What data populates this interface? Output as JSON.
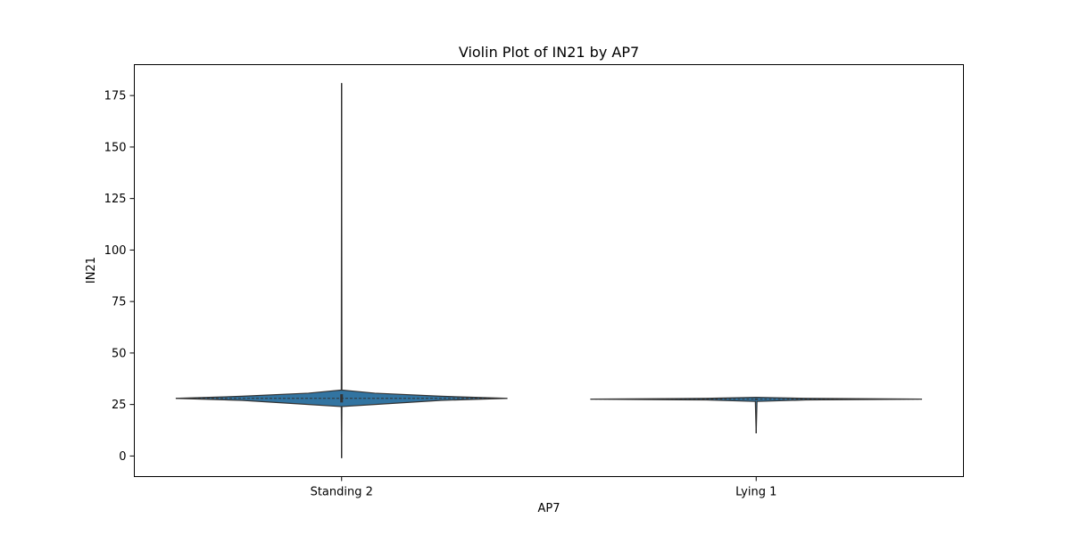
{
  "chart_data": {
    "type": "violin",
    "title": "Violin Plot of IN21 by AP7",
    "xlabel": "AP7",
    "ylabel": "IN21",
    "categories": [
      "Standing 2",
      "Lying 1"
    ],
    "ylim": [
      -10,
      190
    ],
    "yticks": [
      0,
      25,
      50,
      75,
      100,
      125,
      150,
      175
    ],
    "grid": false,
    "legend": "none",
    "fill_color": "#3274a1",
    "line_color": "#333333",
    "series": [
      {
        "category": "Standing 2",
        "min": -1,
        "max": 181,
        "q1": 26,
        "median": 28,
        "q3": 30,
        "density": [
          {
            "y": -1,
            "w": 0.0
          },
          {
            "y": 24,
            "w": 0.002
          },
          {
            "y": 25,
            "w": 0.2
          },
          {
            "y": 27,
            "w": 0.6
          },
          {
            "y": 28,
            "w": 1.0
          },
          {
            "y": 29,
            "w": 0.6
          },
          {
            "y": 30.5,
            "w": 0.2
          },
          {
            "y": 32,
            "w": 0.002
          },
          {
            "y": 181,
            "w": 0.0
          }
        ]
      },
      {
        "category": "Lying 1",
        "min": 11,
        "max": 28.5,
        "q1": 27.2,
        "median": 27.6,
        "q3": 27.9,
        "density": [
          {
            "y": 11,
            "w": 0.0
          },
          {
            "y": 26.5,
            "w": 0.005
          },
          {
            "y": 27.2,
            "w": 0.3
          },
          {
            "y": 27.6,
            "w": 1.0
          },
          {
            "y": 28.0,
            "w": 0.3
          },
          {
            "y": 28.5,
            "w": 0.0
          }
        ]
      }
    ]
  }
}
